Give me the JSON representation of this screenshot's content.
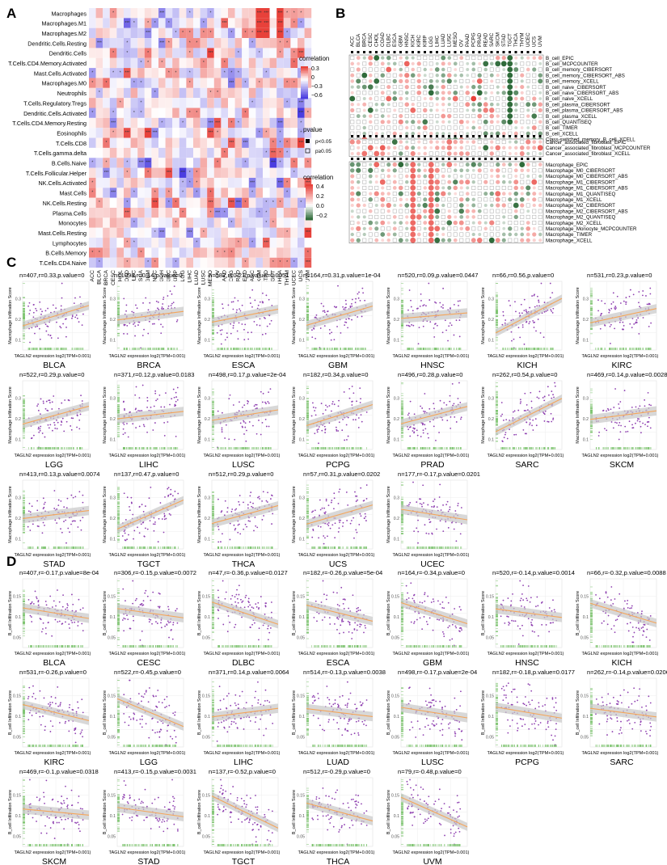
{
  "panels": {
    "A": {
      "label": "A",
      "rows": [
        "Macrophages",
        "Macrophages.M1",
        "Macrophages.M2",
        "Dendritic.Cells.Resting",
        "Dendritic.Cells",
        "T.Cells.CD4.Memory.Activated",
        "Mast.Cells.Activated",
        "Macrophages.M0",
        "Neutrophils",
        "T.Cells.Regulatory.Tregs",
        "Dendritic.Cells.Activated",
        "T.Cells.CD4.Memory.Resting",
        "Eosinophils",
        "T.Cells.CD8",
        "T.Cells.gamma.delta",
        "B.Cells.Naive",
        "T.Cells.Follicular.Helper",
        "NK.Cells.Activated",
        "Mast.Cells",
        "NK.Cells.Resting",
        "Plasma.Cells",
        "Monocytes",
        "Mast.Cells.Resting",
        "Lymphocytes",
        "B.Cells.Memory",
        "T.Cells.CD4.Naive"
      ],
      "cols": [
        "ACC",
        "BLCA",
        "BRCA",
        "CESC",
        "CHOL",
        "COAD",
        "DLBC",
        "ESCA",
        "GBM",
        "HNSC",
        "KICH",
        "KIRC",
        "KIRP",
        "LGG",
        "LIHC",
        "LUAD",
        "LUSC",
        "MESO",
        "OV",
        "PAAD",
        "PCPG",
        "PRAD",
        "READ",
        "SARC",
        "SKCM",
        "STAD",
        "TGCT",
        "THCA",
        "THYM",
        "UCEC",
        "UCS",
        "UVM"
      ],
      "legend_title": "correlation",
      "legend_ticks": [
        "0.3",
        "0",
        "−0.3",
        "−0.6"
      ]
    },
    "B": {
      "label": "B",
      "cols": [
        "ACC",
        "BLCA",
        "BRCA",
        "CESC",
        "CHOL",
        "COAD",
        "DLBC",
        "ESCA",
        "GBM",
        "HNSC",
        "KICH",
        "KIRC",
        "KIRP",
        "LGG",
        "LIHC",
        "LUAD",
        "LUSC",
        "MESO",
        "OV",
        "PAAD",
        "PCPG",
        "PRAD",
        "READ",
        "SARC",
        "SKCM",
        "STAD",
        "TGCT",
        "THCA",
        "THYM",
        "UCEC",
        "UCS",
        "UVM"
      ],
      "group1": [
        "B_cell_EPIC",
        "B_cell_MCPCOUNTER",
        "B_cell_memory_CIBERSORT",
        "B_cell_memory_CIBERSORT_ABS",
        "B_cell_memory_XCELL",
        "B_cell_naive_CIBERSORT",
        "B_cell_naive_CIBERSORT_ABS",
        "B_cell_naive_XCELL",
        "B_cell_plasma_CIBERSORT",
        "B_cell_plasma_CIBERSORT_ABS",
        "B_cell_plasma_XCELL",
        "B_cell_QUANTISEQ",
        "B_cell_TIMER",
        "B_cell_XCELL",
        "Class-switched_memory_B_cell_XCELL"
      ],
      "group2": [
        "Cancer_associated_fibroblast_EPIC",
        "Cancer_associated_fibroblast_MCPCOUNTER",
        "Cancer_associated_fibroblast_XCELL"
      ],
      "group3": [
        "Macrophage_EPIC",
        "Macrophage_M0_CIBERSORT",
        "Macrophage_M0_CIBERSORT_ABS",
        "Macrophage_M1_CIBERSORT",
        "Macrophage_M1_CIBERSORT_ABS",
        "Macrophage_M1_QUANTISEQ",
        "Macrophage_M1_XCELL",
        "Macrophage_M2_CIBERSORT",
        "Macrophage_M2_CIBERSORT_ABS",
        "Macrophage_M2_QUANTISEQ",
        "Macrophage_M2_XCELL",
        "Macrophage_Monocyte_MCPCOUNTER",
        "Macrophage_TIMER",
        "Macrophage_XCELL"
      ],
      "pvalue_title": "pvalue",
      "pvalue_items": [
        "p<0.05",
        "p≥0.05"
      ],
      "legend_title": "correlation",
      "legend_ticks": [
        "0.4",
        "0.2",
        "0.0",
        "−0.2"
      ]
    },
    "C": {
      "label": "C",
      "ylabel": "Macrophage Infiltration Score",
      "xlabel": "TAGLN2 expression log2(TPM+0.001)",
      "plots": [
        {
          "name": "BLCA",
          "stats": "n=407,r=0.33,p.value=0",
          "r": 0.33
        },
        {
          "name": "BRCA",
          "stats": "n=1098,r=0.14,p.value=0",
          "r": 0.14
        },
        {
          "name": "ESCA",
          "stats": "n=182,r=0.21,p.value=0.0051",
          "r": 0.21
        },
        {
          "name": "GBM",
          "stats": "n=164,r=0.31,p.value=1e-04",
          "r": 0.31
        },
        {
          "name": "HNSC",
          "stats": "n=520,r=0.09,p.value=0.0447",
          "r": 0.09
        },
        {
          "name": "KICH",
          "stats": "n=66,r=0.56,p.value=0",
          "r": 0.56
        },
        {
          "name": "KIRC",
          "stats": "n=531,r=0.23,p.value=0",
          "r": 0.23
        },
        {
          "name": "LGG",
          "stats": "n=522,r=0.29,p.value=0",
          "r": 0.29
        },
        {
          "name": "LIHC",
          "stats": "n=371,r=0.12,p.value=0.0183",
          "r": 0.12
        },
        {
          "name": "LUSC",
          "stats": "n=498,r=0.17,p.value=2e-04",
          "r": 0.17
        },
        {
          "name": "PCPG",
          "stats": "n=182,r=0.34,p.value=0",
          "r": 0.34
        },
        {
          "name": "PRAD",
          "stats": "n=496,r=0.28,p.value=0",
          "r": 0.28
        },
        {
          "name": "SARC",
          "stats": "n=262,r=0.54,p.value=0",
          "r": 0.54
        },
        {
          "name": "SKCM",
          "stats": "n=469,r=0.14,p.value=0.0028",
          "r": 0.14
        },
        {
          "name": "STAD",
          "stats": "n=413,r=0.13,p.value=0.0074",
          "r": 0.13
        },
        {
          "name": "TGCT",
          "stats": "n=137,r=0.47,p.value=0",
          "r": 0.47
        },
        {
          "name": "THCA",
          "stats": "n=512,r=0.29,p.value=0",
          "r": 0.29
        },
        {
          "name": "UCS",
          "stats": "n=57,r=0.31,p.value=0.0202",
          "r": 0.31
        },
        {
          "name": "UCEC",
          "stats": "n=177,r=-0.17,p.value=0.0201",
          "r": -0.17
        }
      ]
    },
    "D": {
      "label": "D",
      "ylabel": "B_cell Infiltration Score",
      "xlabel": "TAGLN2 expression log2(TPM+0.001)",
      "plots": [
        {
          "name": "BLCA",
          "stats": "n=407,r=-0.17,p.value=8e-04",
          "r": -0.17
        },
        {
          "name": "CESC",
          "stats": "n=306,r=-0.15,p.value=0.0072",
          "r": -0.15
        },
        {
          "name": "DLBC",
          "stats": "n=47,r=-0.36,p.value=0.0127",
          "r": -0.36
        },
        {
          "name": "ESCA",
          "stats": "n=182,r=-0.26,p.value=5e-04",
          "r": -0.26
        },
        {
          "name": "GBM",
          "stats": "n=164,r=-0.34,p.value=0",
          "r": -0.34
        },
        {
          "name": "HNSC",
          "stats": "n=520,r=-0.14,p.value=0.0014",
          "r": -0.14
        },
        {
          "name": "KICH",
          "stats": "n=66,r=-0.32,p.value=0.0088",
          "r": -0.32
        },
        {
          "name": "KIRC",
          "stats": "n=531,r=-0.26,p.value=0",
          "r": -0.26
        },
        {
          "name": "LGG",
          "stats": "n=522,r=-0.45,p.value=0",
          "r": -0.45
        },
        {
          "name": "LIHC",
          "stats": "n=371,r=0.14,p.value=0.0064",
          "r": 0.14
        },
        {
          "name": "LUAD",
          "stats": "n=514,r=-0.13,p.value=0.0038",
          "r": -0.13
        },
        {
          "name": "LUSC",
          "stats": "n=498,r=-0.17,p.value=2e-04",
          "r": -0.17
        },
        {
          "name": "PCPG",
          "stats": "n=182,r=-0.18,p.value=0.0177",
          "r": -0.18
        },
        {
          "name": "SARC",
          "stats": "n=262,r=-0.14,p.value=0.0206",
          "r": -0.14
        },
        {
          "name": "SKCM",
          "stats": "n=469,r=-0.1,p.value=0.0318",
          "r": -0.1
        },
        {
          "name": "STAD",
          "stats": "n=413,r=-0.15,p.value=0.0031",
          "r": -0.15
        },
        {
          "name": "TGCT",
          "stats": "n=137,r=-0.52,p.value=0",
          "r": -0.52
        },
        {
          "name": "THCA",
          "stats": "n=512,r=-0.29,p.value=0",
          "r": -0.29
        },
        {
          "name": "UVM",
          "stats": "n=79,r=-0.48,p.value=0",
          "r": -0.48
        }
      ]
    }
  },
  "colors": {
    "point": "#8e3fb0",
    "fit": "#f4a55a",
    "band": "#c8c8c8",
    "rug_x": "#7cc36e",
    "rug_y": "#7cc36e",
    "pos": "#e8413a",
    "neg": "#4a3de0",
    "neg_b": "#2f6b3a"
  }
}
